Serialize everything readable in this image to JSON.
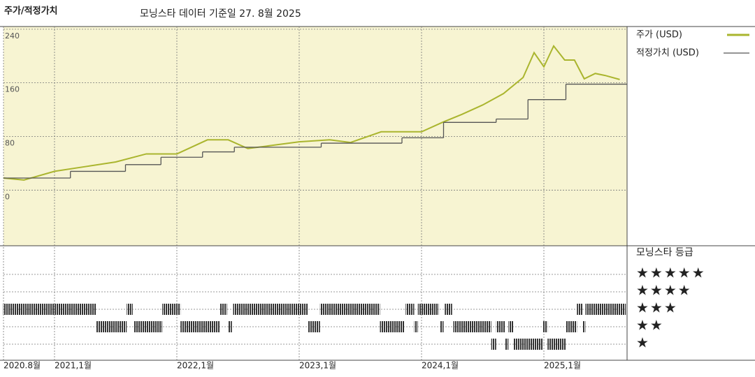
{
  "chart_data": {
    "type": "line",
    "title": "주가/적정가치",
    "subtitle": "모닝스타 데이터 기준일 27. 8월 2025",
    "xlim": [
      2020.583,
      2025.68
    ],
    "xticks": [
      {
        "value": 2020.583,
        "label": "2020.8월"
      },
      {
        "value": 2021.0,
        "label": "2021,1월"
      },
      {
        "value": 2022.0,
        "label": "2022,1월"
      },
      {
        "value": 2023.0,
        "label": "2023,1월"
      },
      {
        "value": 2024.0,
        "label": "2024,1월"
      },
      {
        "value": 2025.0,
        "label": "2025,1월"
      }
    ],
    "ylim": [
      -83,
      244
    ],
    "yticks": [
      0,
      80,
      160,
      240
    ],
    "grid": true,
    "series": [
      {
        "name": "주가 (USD)",
        "color": "#aab52e",
        "x": [
          2020.583,
          2020.75,
          2021.0,
          2021.25,
          2021.5,
          2021.75,
          2022.0,
          2022.25,
          2022.42,
          2022.58,
          2022.75,
          2023.0,
          2023.25,
          2023.42,
          2023.67,
          2024.0,
          2024.17,
          2024.33,
          2024.5,
          2024.67,
          2024.83,
          2024.92,
          2025.0,
          2025.08,
          2025.17,
          2025.25,
          2025.33,
          2025.42,
          2025.5,
          2025.62
        ],
        "values": [
          18,
          15,
          28,
          35,
          42,
          54,
          54,
          75,
          75,
          62,
          66,
          72,
          75,
          71,
          87,
          87,
          101,
          113,
          127,
          144,
          168,
          205,
          184,
          215,
          194,
          194,
          166,
          174,
          171,
          165
        ]
      },
      {
        "name": "적정가치 (USD)",
        "color": "#555555",
        "step": "after",
        "x": [
          2020.583,
          2021.13,
          2021.58,
          2021.87,
          2022.21,
          2022.47,
          2023.18,
          2023.84,
          2024.18,
          2024.61,
          2024.87,
          2025.18
        ],
        "values": [
          18,
          28,
          38,
          49,
          57,
          64,
          70,
          78,
          101,
          106,
          135,
          158
        ]
      }
    ],
    "rating_title": "모닝스타 등급",
    "rating_labels": [
      "★",
      "★★",
      "★★★",
      "★★★★",
      "★★★★★"
    ],
    "ratings": {
      "start": [
        2020.58,
        2021.34,
        2021.59,
        2021.65,
        2021.88,
        2022.03,
        2022.35,
        2022.42,
        2022.46,
        2023.07,
        2023.17,
        2023.66,
        2023.87,
        2023.94,
        2023.97,
        2024.15,
        2024.19,
        2024.26,
        2024.57,
        2024.61,
        2024.68,
        2024.71,
        2024.75,
        2024.99,
        2025.03,
        2025.18,
        2025.27,
        2025.32,
        2025.34
      ],
      "end": [
        2021.34,
        2021.59,
        2021.64,
        2021.88,
        2022.03,
        2022.35,
        2022.41,
        2022.45,
        2023.07,
        2023.17,
        2023.66,
        2023.86,
        2023.94,
        2023.97,
        2024.14,
        2024.18,
        2024.25,
        2024.57,
        2024.61,
        2024.68,
        2024.71,
        2024.75,
        2024.99,
        2025.03,
        2025.18,
        2025.27,
        2025.32,
        2025.34,
        2025.67
      ],
      "stars": [
        3,
        2,
        3,
        2,
        3,
        2,
        3,
        2,
        3,
        2,
        3,
        2,
        3,
        2,
        3,
        2,
        3,
        2,
        1,
        2,
        1,
        2,
        1,
        2,
        1,
        2,
        3,
        2,
        3
      ]
    }
  }
}
